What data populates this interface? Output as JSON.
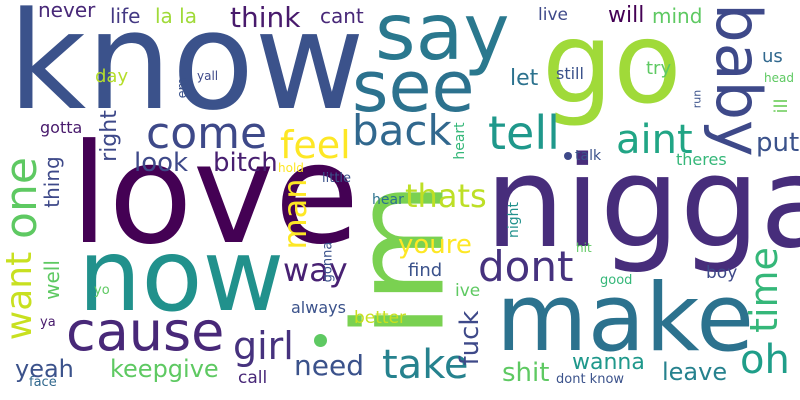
{
  "words": [
    {
      "text": "know",
      "color": "#3b528b",
      "vertical": false
    },
    {
      "text": "love",
      "color": "#440154",
      "vertical": false
    },
    {
      "text": "nigga",
      "color": "#472d7b",
      "vertical": false
    },
    {
      "text": "now",
      "color": "#21918c",
      "vertical": false
    },
    {
      "text": "im",
      "color": "#7ad151",
      "vertical": true
    },
    {
      "text": "go",
      "color": "#a0da39",
      "vertical": false
    },
    {
      "text": "say",
      "color": "#2a788e",
      "vertical": false
    },
    {
      "text": "make",
      "color": "#2c728e",
      "vertical": false
    },
    {
      "text": "see",
      "color": "#2c728e",
      "vertical": false
    },
    {
      "text": "baby",
      "color": "#3e4989",
      "vertical": true
    },
    {
      "text": "cause",
      "color": "#482878",
      "vertical": false
    },
    {
      "text": "one",
      "color": "#5ec962",
      "vertical": true
    },
    {
      "text": "come",
      "color": "#3e4989",
      "vertical": false
    },
    {
      "text": "tell",
      "color": "#1f988b",
      "vertical": false
    },
    {
      "text": "back",
      "color": "#31688e",
      "vertical": false
    },
    {
      "text": "aint",
      "color": "#21a585",
      "vertical": false
    },
    {
      "text": "dont",
      "color": "#46327e",
      "vertical": false
    },
    {
      "text": "girl",
      "color": "#46327e",
      "vertical": false
    },
    {
      "text": "want",
      "color": "#c8e020",
      "vertical": true
    },
    {
      "text": "take",
      "color": "#26828e",
      "vertical": false
    },
    {
      "text": "time",
      "color": "#35b779",
      "vertical": true
    },
    {
      "text": "oh",
      "color": "#1f9e89",
      "vertical": false
    },
    {
      "text": "feel",
      "color": "#fde725",
      "vertical": false
    },
    {
      "text": "thats",
      "color": "#bddf26",
      "vertical": false
    },
    {
      "text": "way",
      "color": "#482173",
      "vertical": false
    },
    {
      "text": "man",
      "color": "#fde725",
      "vertical": true
    },
    {
      "text": "fuck",
      "color": "#3e4989",
      "vertical": true
    },
    {
      "text": "youre",
      "color": "#fde725",
      "vertical": false
    },
    {
      "text": "need",
      "color": "#3b528b",
      "vertical": false
    },
    {
      "text": "think",
      "color": "#481a6c",
      "vertical": false
    },
    {
      "text": "look",
      "color": "#3e4989",
      "vertical": false
    },
    {
      "text": "bitch",
      "color": "#481f70",
      "vertical": false
    },
    {
      "text": "put",
      "color": "#3b528b",
      "vertical": false
    },
    {
      "text": "shit",
      "color": "#5ec962",
      "vertical": false
    },
    {
      "text": "wanna",
      "color": "#1f988b",
      "vertical": false
    },
    {
      "text": "leave",
      "color": "#26828e",
      "vertical": false
    },
    {
      "text": "keepgive",
      "color": "#5ec962",
      "vertical": false
    },
    {
      "text": "yeah",
      "color": "#3b528b",
      "vertical": false
    },
    {
      "text": "right",
      "color": "#3e4989",
      "vertical": true
    },
    {
      "text": "let",
      "color": "#2c728e",
      "vertical": false
    },
    {
      "text": "will",
      "color": "#440154",
      "vertical": false
    },
    {
      "text": "mind",
      "color": "#5ec962",
      "vertical": false
    },
    {
      "text": "never",
      "color": "#482878",
      "vertical": false
    },
    {
      "text": "life",
      "color": "#443983",
      "vertical": false
    },
    {
      "text": "la la",
      "color": "#a0da39",
      "vertical": false
    },
    {
      "text": "cant",
      "color": "#482878",
      "vertical": false
    },
    {
      "text": "live",
      "color": "#3e4989",
      "vertical": false
    },
    {
      "text": "us",
      "color": "#31688e",
      "vertical": false
    },
    {
      "text": "day",
      "color": "#b5de2b",
      "vertical": false
    },
    {
      "text": "try",
      "color": "#5ec962",
      "vertical": false
    },
    {
      "text": "still",
      "color": "#3b528b",
      "vertical": false
    },
    {
      "text": "ill",
      "color": "#6ccd5a",
      "vertical": true
    },
    {
      "text": "well",
      "color": "#5ec962",
      "vertical": true
    },
    {
      "text": "thing",
      "color": "#3e4989",
      "vertical": true
    },
    {
      "text": "gotta",
      "color": "#481a6c",
      "vertical": false
    },
    {
      "text": "find",
      "color": "#3b528b",
      "vertical": false
    },
    {
      "text": "always",
      "color": "#3b528b",
      "vertical": false
    },
    {
      "text": "better",
      "color": "#c8e020",
      "vertical": false
    },
    {
      "text": "ive",
      "color": "#5ec962",
      "vertical": false
    },
    {
      "text": "boy",
      "color": "#3e4989",
      "vertical": false
    },
    {
      "text": "call",
      "color": "#482878",
      "vertical": false
    },
    {
      "text": "theres",
      "color": "#35b779",
      "vertical": false
    },
    {
      "text": "talk",
      "color": "#3b528b",
      "vertical": false
    },
    {
      "text": "heart",
      "color": "#35b779",
      "vertical": true
    },
    {
      "text": "night",
      "color": "#21918c",
      "vertical": true
    },
    {
      "text": "hear",
      "color": "#2c728e",
      "vertical": false
    },
    {
      "text": "little",
      "color": "#3b528b",
      "vertical": false
    },
    {
      "text": "gonna",
      "color": "#3b528b",
      "vertical": true
    },
    {
      "text": "hold",
      "color": "#fde725",
      "vertical": false
    },
    {
      "text": "yall",
      "color": "#3e4989",
      "vertical": false
    },
    {
      "text": "em",
      "color": "#3b528b",
      "vertical": true
    },
    {
      "text": "run",
      "color": "#3b528b",
      "vertical": true
    },
    {
      "text": "head",
      "color": "#5ec962",
      "vertical": false
    },
    {
      "text": "good",
      "color": "#35b779",
      "vertical": false
    },
    {
      "text": "hit",
      "color": "#5ec962",
      "vertical": false
    },
    {
      "text": "yo",
      "color": "#5ec962",
      "vertical": false
    },
    {
      "text": "ya",
      "color": "#481a6c",
      "vertical": false
    },
    {
      "text": "face",
      "color": "#31688e",
      "vertical": false
    },
    {
      "text": "dont know",
      "color": "#3b528b",
      "vertical": false
    }
  ],
  "dots": [
    {
      "name": "dot-1",
      "color": "#3e4989"
    },
    {
      "name": "dot-2",
      "color": "#5ec962"
    }
  ]
}
